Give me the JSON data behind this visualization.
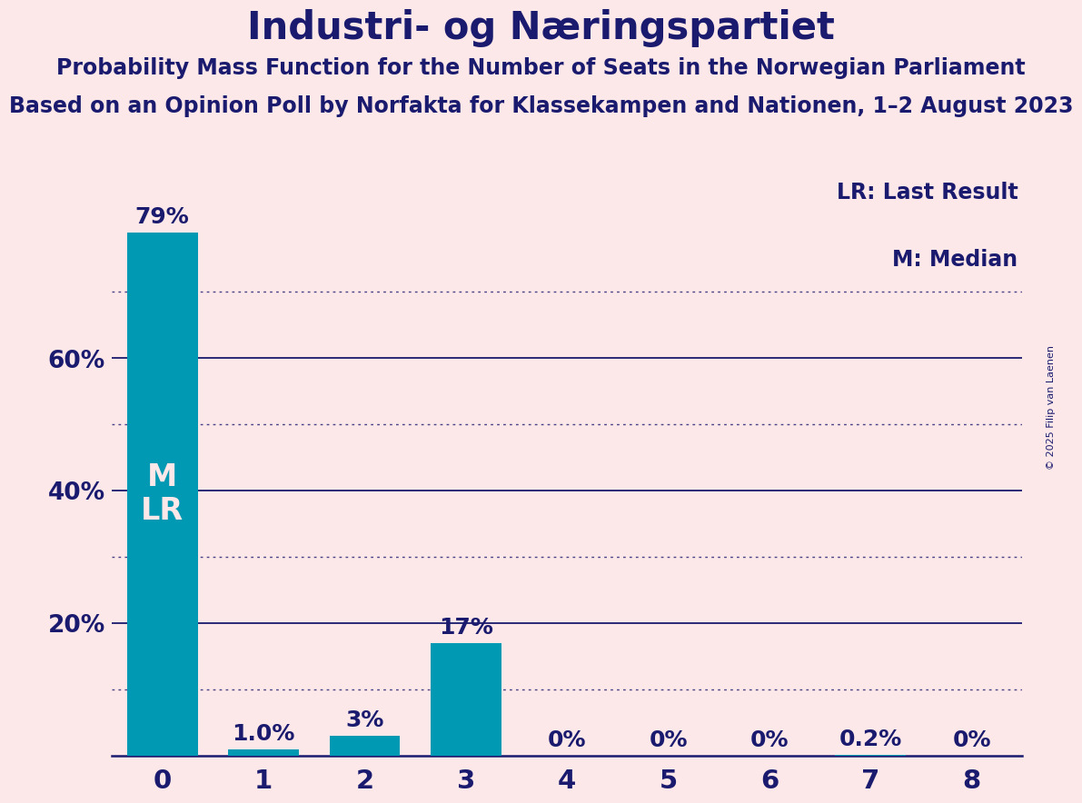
{
  "title": "Industri- og Næringspartiet",
  "subtitle1": "Probability Mass Function for the Number of Seats in the Norwegian Parliament",
  "subtitle2": "Based on an Opinion Poll by Norfakta for Klassekampen and Nationen, 1–2 August 2023",
  "copyright": "© 2025 Filip van Laenen",
  "categories": [
    0,
    1,
    2,
    3,
    4,
    5,
    6,
    7,
    8
  ],
  "values": [
    0.79,
    0.01,
    0.03,
    0.17,
    0.0,
    0.0,
    0.0,
    0.002,
    0.0
  ],
  "bar_labels": [
    "79%",
    "1.0%",
    "3%",
    "17%",
    "0%",
    "0%",
    "0%",
    "0.2%",
    "0%"
  ],
  "bar_color": "#0099b4",
  "background_color": "#fce8e8",
  "text_color": "#1a1a6e",
  "bar_text_color_light": "#fce8e8",
  "median": 0,
  "last_result": 0,
  "ylim": [
    0,
    0.88
  ],
  "yticks": [
    0.2,
    0.4,
    0.6
  ],
  "ytick_labels": [
    "20%",
    "40%",
    "60%"
  ],
  "solid_gridlines": [
    0.2,
    0.4,
    0.6
  ],
  "dotted_gridlines": [
    0.1,
    0.3,
    0.5,
    0.7
  ],
  "legend_lr": "LR: Last Result",
  "legend_m": "M: Median",
  "title_fontsize": 30,
  "subtitle_fontsize": 17,
  "axis_label_fontsize": 19,
  "bar_label_fontsize": 18,
  "legend_fontsize": 17,
  "copyright_fontsize": 8
}
